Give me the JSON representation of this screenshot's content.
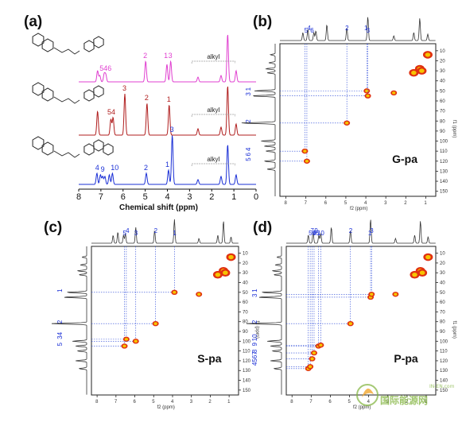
{
  "panels": {
    "a": {
      "label": "(a)",
      "x_axis_title": "Chemical shift (ppm)",
      "x_ticks": [
        "8",
        "7",
        "6",
        "5",
        "4",
        "3",
        "2",
        "1",
        "0"
      ],
      "x_range": [
        8,
        0
      ],
      "alkyl_label": "alkyl",
      "spectra": [
        {
          "color": "#e040d0",
          "peaks": [
            [
              7.15,
              14
            ],
            [
              7.05,
              8
            ],
            [
              6.85,
              10
            ],
            [
              6.78,
              9
            ],
            [
              4.98,
              26
            ],
            [
              4.02,
              22
            ],
            [
              3.85,
              26
            ],
            [
              2.62,
              6
            ],
            [
              1.58,
              8
            ],
            [
              1.28,
              60
            ],
            [
              0.9,
              14
            ]
          ],
          "peak_labels": [
            {
              "text": "3",
              "ppm": 3.85
            },
            {
              "text": "2",
              "ppm": 4.98
            },
            {
              "text": "1",
              "ppm": 4.05
            },
            {
              "text": "546",
              "ppm": 6.95
            }
          ]
        },
        {
          "color": "#b01e1e",
          "peaks": [
            [
              7.15,
              30
            ],
            [
              6.55,
              20
            ],
            [
              6.45,
              22
            ],
            [
              5.92,
              52
            ],
            [
              4.92,
              40
            ],
            [
              3.92,
              38
            ],
            [
              2.62,
              8
            ],
            [
              1.58,
              10
            ],
            [
              1.28,
              62
            ],
            [
              0.9,
              14
            ]
          ],
          "peak_labels": [
            {
              "text": "3",
              "ppm": 5.92
            },
            {
              "text": "2",
              "ppm": 4.92
            },
            {
              "text": "1",
              "ppm": 3.92
            },
            {
              "text": "4",
              "ppm": 6.42
            },
            {
              "text": "5",
              "ppm": 6.6
            }
          ]
        },
        {
          "color": "#1a2fd6",
          "peaks": [
            [
              7.18,
              14
            ],
            [
              7.02,
              12
            ],
            [
              6.92,
              10
            ],
            [
              6.82,
              10
            ],
            [
              6.62,
              12
            ],
            [
              6.48,
              14
            ],
            [
              4.95,
              14
            ],
            [
              3.95,
              18
            ],
            [
              3.78,
              62
            ],
            [
              2.62,
              6
            ],
            [
              1.58,
              10
            ],
            [
              1.28,
              50
            ],
            [
              0.9,
              12
            ]
          ],
          "peak_labels": [
            {
              "text": "3",
              "ppm": 3.78
            },
            {
              "text": "2",
              "ppm": 4.95
            },
            {
              "text": "1",
              "ppm": 3.98
            },
            {
              "text": "9",
              "ppm": 6.9
            },
            {
              "text": "10",
              "ppm": 6.45
            },
            {
              "text": "4",
              "ppm": 7.15
            }
          ]
        }
      ]
    },
    "b": {
      "label": "(b)",
      "sample": "G-pa",
      "top_labels": [
        "5",
        "4",
        "6",
        "2",
        "3",
        "1"
      ],
      "left_labels": [
        "3",
        "1",
        "2",
        "5",
        "6",
        "4"
      ],
      "crosspeaks": [
        [
          6.95,
          120
        ],
        [
          7.05,
          110
        ],
        [
          4.95,
          82
        ],
        [
          3.95,
          50
        ],
        [
          3.9,
          55
        ],
        [
          2.6,
          52
        ],
        [
          1.6,
          32
        ],
        [
          1.3,
          28
        ],
        [
          1.2,
          30
        ],
        [
          0.9,
          14
        ]
      ],
      "f2_ticks": [
        "8",
        "7",
        "6",
        "5",
        "4",
        "3",
        "2",
        "1"
      ],
      "f1_ticks": [
        "10",
        "20",
        "30",
        "40",
        "50",
        "60",
        "70",
        "80",
        "90",
        "100",
        "110",
        "120",
        "130",
        "140",
        "150"
      ],
      "f2_title": "f2 (ppm)",
      "f1_title": "f1 (ppm)"
    },
    "c": {
      "label": "(c)",
      "sample": "S-pa",
      "top_labels": [
        "5",
        "4",
        "3",
        "2",
        "1"
      ],
      "left_labels": [
        "1",
        "2",
        "34",
        "5"
      ],
      "crosspeaks": [
        [
          6.55,
          105
        ],
        [
          6.45,
          98
        ],
        [
          5.95,
          100
        ],
        [
          4.9,
          82
        ],
        [
          3.9,
          50
        ],
        [
          2.6,
          52
        ],
        [
          1.6,
          32
        ],
        [
          1.3,
          28
        ],
        [
          1.2,
          30
        ],
        [
          0.9,
          14
        ]
      ],
      "f2_ticks": [
        "8",
        "7",
        "6",
        "5",
        "4",
        "3",
        "2",
        "1"
      ],
      "f1_ticks": [
        "10",
        "20",
        "30",
        "40",
        "50",
        "60",
        "70",
        "80",
        "90",
        "100",
        "110",
        "120",
        "130",
        "140",
        "150"
      ],
      "f2_title": "f2 (ppm)",
      "f1_title": "f1 (ppm)"
    },
    "d": {
      "label": "(d)",
      "sample": "P-pa",
      "top_labels": [
        "546",
        "7",
        "8",
        "9",
        "10",
        "2",
        "1",
        "3"
      ],
      "left_labels": [
        "3",
        "1",
        "2",
        "10",
        "9",
        "8",
        "4567"
      ],
      "crosspeaks": [
        [
          7.15,
          128
        ],
        [
          7.05,
          126
        ],
        [
          6.95,
          118
        ],
        [
          6.85,
          112
        ],
        [
          6.62,
          105
        ],
        [
          6.5,
          104
        ],
        [
          4.95,
          82
        ],
        [
          3.9,
          55
        ],
        [
          3.85,
          52
        ],
        [
          2.6,
          52
        ],
        [
          1.6,
          32
        ],
        [
          1.3,
          28
        ],
        [
          1.2,
          30
        ],
        [
          0.9,
          14
        ]
      ],
      "f2_ticks": [
        "8",
        "7",
        "6",
        "5",
        "4",
        "3",
        "2",
        "1"
      ],
      "f1_ticks": [
        "10",
        "20",
        "30",
        "40",
        "50",
        "60",
        "70",
        "80",
        "90",
        "100",
        "110",
        "120",
        "130",
        "140",
        "150"
      ],
      "f2_title": "f2 (ppm)",
      "f1_title": "f1 (ppm)"
    }
  },
  "watermark": {
    "text": "国际能源网",
    "sub": "IN-EN.com"
  }
}
